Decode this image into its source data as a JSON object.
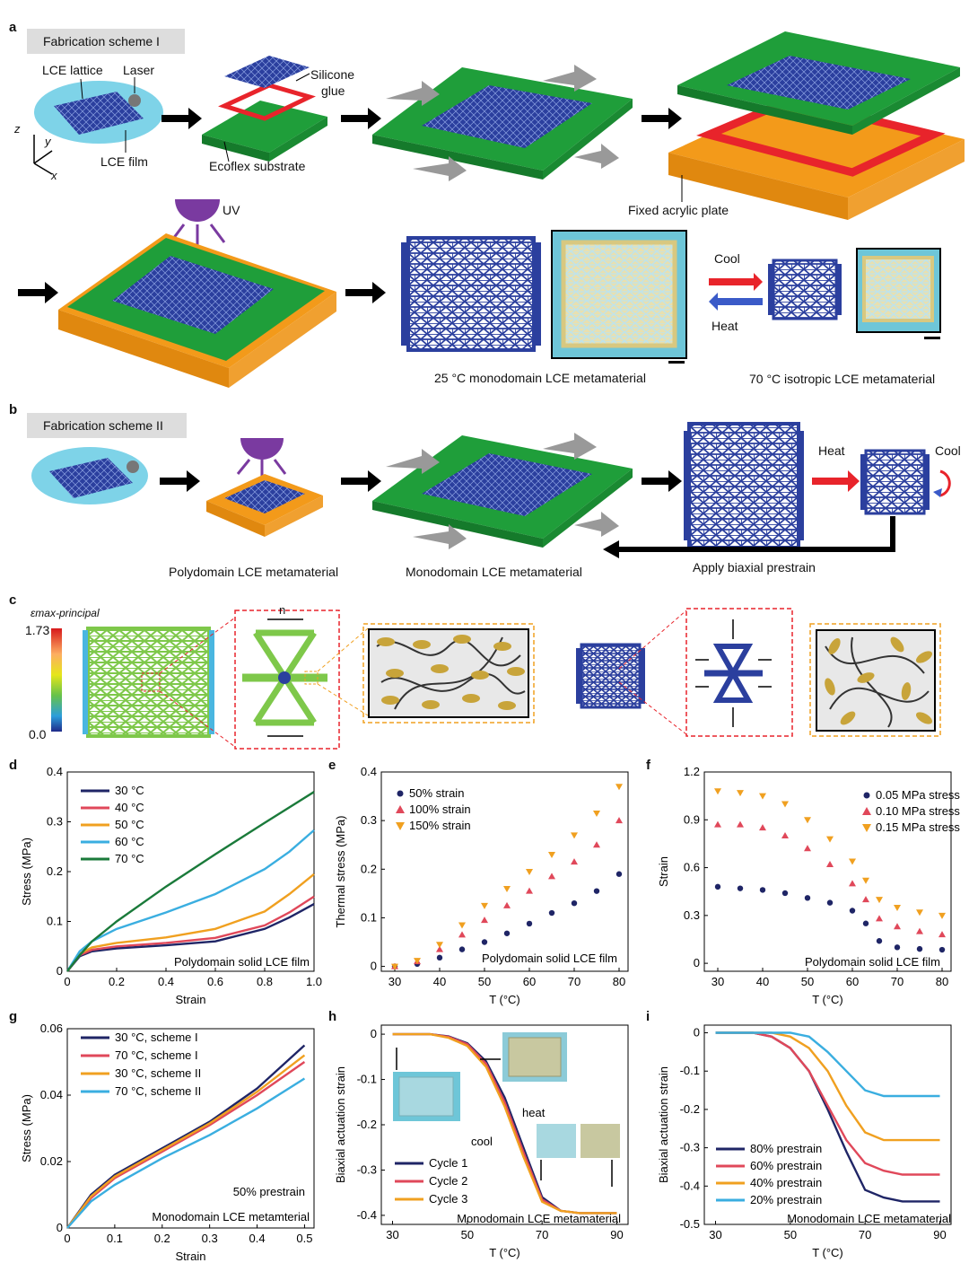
{
  "panel_labels": {
    "a": "a",
    "b": "b",
    "c": "c",
    "d": "d",
    "e": "e",
    "f": "f",
    "g": "g",
    "h": "h",
    "i": "i"
  },
  "panel_a": {
    "scheme": "Fabrication scheme I",
    "lce_lattice": "LCE lattice",
    "laser": "Laser",
    "lce_film": "LCE film",
    "silicone": "Silicone",
    "glue": "glue",
    "ecoflex": "Ecoflex substrate",
    "acrylic": "Fixed acrylic plate",
    "uv": "UV",
    "cool": "Cool",
    "heat": "Heat",
    "caption_mono": "25 °C monodomain LCE metamaterial",
    "caption_iso": "70 °C isotropic LCE metamaterial",
    "axis_z": "z",
    "axis_y": "y",
    "axis_x": "x"
  },
  "panel_b": {
    "scheme": "Fabrication scheme II",
    "poly": "Polydomain LCE metamaterial",
    "mono": "Monodomain LCE metamaterial",
    "heat": "Heat",
    "cool": "Cool",
    "prestrain": "Apply biaxial prestrain"
  },
  "panel_c": {
    "colorbar_label": "εmax-principal",
    "cb_max": "1.73",
    "cb_min": "0.0",
    "n_label": "n"
  },
  "colors": {
    "lattice": "#2b3f9e",
    "substrate": "#1f9e3a",
    "plate": "#f39a1a",
    "frame": "#e8242b",
    "film": "#7ed3e8",
    "uv": "#7a3aa0"
  },
  "chart_data": [
    {
      "id": "d",
      "type": "line",
      "xlabel": "Strain",
      "ylabel": "Stress (MPa)",
      "xlim": [
        0,
        1.0
      ],
      "ylim": [
        0,
        0.4
      ],
      "xticks": [
        "0",
        "0.2",
        "0.4",
        "0.6",
        "0.8",
        "1.0"
      ],
      "yticks": [
        "0",
        "0.1",
        "0.2",
        "0.3",
        "0.4"
      ],
      "annotation": "Polydomain solid LCE film",
      "series": [
        {
          "name": "30 °C",
          "color": "#1f2566",
          "x": [
            0,
            0.05,
            0.1,
            0.2,
            0.4,
            0.6,
            0.8,
            0.9,
            1.0
          ],
          "y": [
            0,
            0.03,
            0.04,
            0.046,
            0.052,
            0.06,
            0.085,
            0.108,
            0.135
          ]
        },
        {
          "name": "40 °C",
          "color": "#e0485a",
          "x": [
            0,
            0.05,
            0.1,
            0.2,
            0.4,
            0.6,
            0.8,
            0.9,
            1.0
          ],
          "y": [
            0,
            0.032,
            0.043,
            0.05,
            0.057,
            0.067,
            0.092,
            0.118,
            0.15
          ]
        },
        {
          "name": "50 °C",
          "color": "#f0a020",
          "x": [
            0,
            0.05,
            0.1,
            0.2,
            0.4,
            0.6,
            0.8,
            0.9,
            1.0
          ],
          "y": [
            0,
            0.035,
            0.048,
            0.057,
            0.068,
            0.085,
            0.12,
            0.155,
            0.195
          ]
        },
        {
          "name": "60 °C",
          "color": "#3aaee0",
          "x": [
            0,
            0.05,
            0.1,
            0.2,
            0.4,
            0.6,
            0.8,
            0.9,
            1.0
          ],
          "y": [
            0,
            0.04,
            0.06,
            0.085,
            0.118,
            0.155,
            0.205,
            0.24,
            0.283
          ]
        },
        {
          "name": "70 °C",
          "color": "#1a7a3a",
          "x": [
            0,
            0.05,
            0.1,
            0.2,
            0.4,
            0.6,
            0.8,
            1.0
          ],
          "y": [
            0,
            0.032,
            0.06,
            0.1,
            0.17,
            0.235,
            0.298,
            0.36
          ]
        }
      ]
    },
    {
      "id": "e",
      "type": "scatter",
      "xlabel": "T (°C)",
      "ylabel": "Thermal stress (MPa)",
      "xlim": [
        27,
        82
      ],
      "ylim": [
        -0.01,
        0.4
      ],
      "xticks": [
        "30",
        "40",
        "50",
        "60",
        "70",
        "80"
      ],
      "yticks": [
        "0",
        "0.1",
        "0.2",
        "0.3",
        "0.4"
      ],
      "annotation": "Polydomain solid LCE film",
      "series": [
        {
          "name": "50% strain",
          "color": "#1f2566",
          "marker": "circle",
          "x": [
            30,
            35,
            40,
            45,
            50,
            55,
            60,
            65,
            70,
            75,
            80
          ],
          "y": [
            0,
            0.005,
            0.018,
            0.035,
            0.05,
            0.068,
            0.088,
            0.11,
            0.13,
            0.155,
            0.19
          ]
        },
        {
          "name": "100% strain",
          "color": "#e0485a",
          "marker": "triangle-up",
          "x": [
            30,
            35,
            40,
            45,
            50,
            55,
            60,
            65,
            70,
            75,
            80
          ],
          "y": [
            0,
            0.01,
            0.035,
            0.065,
            0.095,
            0.125,
            0.155,
            0.185,
            0.215,
            0.25,
            0.3
          ]
        },
        {
          "name": "150% strain",
          "color": "#f0a020",
          "marker": "triangle-down",
          "x": [
            30,
            35,
            40,
            45,
            50,
            55,
            60,
            65,
            70,
            75,
            80
          ],
          "y": [
            0,
            0.012,
            0.045,
            0.085,
            0.125,
            0.16,
            0.195,
            0.23,
            0.27,
            0.315,
            0.37
          ]
        }
      ]
    },
    {
      "id": "f",
      "type": "scatter",
      "xlabel": "T (°C)",
      "ylabel": "Strain",
      "xlim": [
        27,
        82
      ],
      "ylim": [
        -0.05,
        1.2
      ],
      "xticks": [
        "30",
        "40",
        "50",
        "60",
        "70",
        "80"
      ],
      "yticks": [
        "0",
        "0.3",
        "0.6",
        "0.9",
        "1.2"
      ],
      "annotation": "Polydomain solid LCE film",
      "series": [
        {
          "name": "0.05 MPa stress",
          "color": "#1f2566",
          "marker": "circle",
          "x": [
            30,
            35,
            40,
            45,
            50,
            55,
            60,
            63,
            66,
            70,
            75,
            80
          ],
          "y": [
            0.48,
            0.47,
            0.46,
            0.44,
            0.41,
            0.38,
            0.33,
            0.25,
            0.14,
            0.1,
            0.09,
            0.085
          ]
        },
        {
          "name": "0.10 MPa stress",
          "color": "#e0485a",
          "marker": "triangle-up",
          "x": [
            30,
            35,
            40,
            45,
            50,
            55,
            60,
            63,
            66,
            70,
            75,
            80
          ],
          "y": [
            0.87,
            0.87,
            0.85,
            0.8,
            0.72,
            0.62,
            0.5,
            0.4,
            0.28,
            0.23,
            0.2,
            0.18
          ]
        },
        {
          "name": "0.15 MPa stress",
          "color": "#f0a020",
          "marker": "triangle-down",
          "x": [
            30,
            35,
            40,
            45,
            50,
            55,
            60,
            63,
            66,
            70,
            75,
            80
          ],
          "y": [
            1.08,
            1.07,
            1.05,
            1.0,
            0.9,
            0.78,
            0.64,
            0.52,
            0.4,
            0.35,
            0.32,
            0.3
          ]
        }
      ]
    },
    {
      "id": "g",
      "type": "line",
      "xlabel": "Strain",
      "ylabel": "Stress (MPa)",
      "xlim": [
        0,
        0.52
      ],
      "ylim": [
        0,
        0.06
      ],
      "xticks": [
        "0",
        "0.1",
        "0.2",
        "0.3",
        "0.4",
        "0.5"
      ],
      "yticks": [
        "0",
        "0.02",
        "0.04",
        "0.06"
      ],
      "annotation": "Monodomain LCE metamterial",
      "annotation2": "50% prestrain",
      "series": [
        {
          "name": "30 °C, scheme I",
          "color": "#1f2566",
          "x": [
            0,
            0.05,
            0.1,
            0.2,
            0.3,
            0.4,
            0.5
          ],
          "y": [
            0,
            0.01,
            0.016,
            0.024,
            0.032,
            0.042,
            0.055
          ]
        },
        {
          "name": "70 °C, scheme I",
          "color": "#e0485a",
          "x": [
            0,
            0.05,
            0.1,
            0.2,
            0.3,
            0.4,
            0.5
          ],
          "y": [
            0,
            0.009,
            0.015,
            0.023,
            0.031,
            0.04,
            0.05
          ]
        },
        {
          "name": "30 °C, scheme II",
          "color": "#f0a020",
          "x": [
            0,
            0.05,
            0.1,
            0.2,
            0.3,
            0.4,
            0.5
          ],
          "y": [
            0,
            0.0095,
            0.0155,
            0.0235,
            0.0315,
            0.041,
            0.052
          ]
        },
        {
          "name": "70 °C, scheme II",
          "color": "#3aaee0",
          "x": [
            0,
            0.05,
            0.1,
            0.2,
            0.3,
            0.4,
            0.5
          ],
          "y": [
            0,
            0.008,
            0.013,
            0.021,
            0.028,
            0.036,
            0.045
          ]
        }
      ]
    },
    {
      "id": "h",
      "type": "line",
      "xlabel": "T (°C)",
      "ylabel": "Biaxial actuation strain",
      "xlim": [
        27,
        93
      ],
      "ylim": [
        -0.42,
        0.02
      ],
      "xticks": [
        "30",
        "50",
        "70",
        "90"
      ],
      "yticks": [
        "0",
        "-0.1",
        "-0.2",
        "-0.3",
        "-0.4"
      ],
      "annotation": "Monodomain LCE metamaterial",
      "heat_label": "heat",
      "cool_label": "cool",
      "series": [
        {
          "name": "Cycle 1",
          "color": "#1f2566",
          "x": [
            30,
            40,
            45,
            50,
            55,
            60,
            65,
            70,
            75,
            80,
            90
          ],
          "y": [
            0,
            0,
            -0.005,
            -0.02,
            -0.06,
            -0.14,
            -0.25,
            -0.36,
            -0.39,
            -0.395,
            -0.395
          ]
        },
        {
          "name": "Cycle 2",
          "color": "#e0485a",
          "x": [
            30,
            40,
            45,
            50,
            55,
            60,
            65,
            70,
            75,
            80,
            90
          ],
          "y": [
            0,
            0,
            -0.006,
            -0.022,
            -0.065,
            -0.15,
            -0.26,
            -0.365,
            -0.39,
            -0.395,
            -0.395
          ]
        },
        {
          "name": "Cycle 3",
          "color": "#f0a020",
          "x": [
            30,
            40,
            45,
            50,
            55,
            60,
            65,
            70,
            75,
            80,
            90
          ],
          "y": [
            0,
            0,
            -0.008,
            -0.026,
            -0.072,
            -0.16,
            -0.27,
            -0.37,
            -0.39,
            -0.395,
            -0.395
          ]
        }
      ]
    },
    {
      "id": "i",
      "type": "line",
      "xlabel": "T (°C)",
      "ylabel": "Biaxial actuation strain",
      "xlim": [
        27,
        93
      ],
      "ylim": [
        -0.5,
        0.02
      ],
      "xticks": [
        "30",
        "50",
        "70",
        "90"
      ],
      "yticks": [
        "0",
        "-0.1",
        "-0.2",
        "-0.3",
        "-0.4",
        "-0.5"
      ],
      "annotation": "Monodomain LCE metamaterial",
      "series": [
        {
          "name": "80% prestrain",
          "color": "#1f2566",
          "x": [
            30,
            40,
            45,
            50,
            55,
            60,
            65,
            70,
            75,
            80,
            90
          ],
          "y": [
            0,
            0,
            -0.01,
            -0.04,
            -0.1,
            -0.2,
            -0.31,
            -0.41,
            -0.43,
            -0.44,
            -0.44
          ]
        },
        {
          "name": "60% prestrain",
          "color": "#e0485a",
          "x": [
            30,
            40,
            45,
            50,
            55,
            60,
            65,
            70,
            75,
            80,
            90
          ],
          "y": [
            0,
            0,
            -0.01,
            -0.04,
            -0.1,
            -0.19,
            -0.28,
            -0.34,
            -0.36,
            -0.37,
            -0.37
          ]
        },
        {
          "name": "40% prestrain",
          "color": "#f0a020",
          "x": [
            30,
            40,
            45,
            50,
            55,
            60,
            65,
            70,
            75,
            80,
            90
          ],
          "y": [
            0,
            0,
            0,
            -0.01,
            -0.04,
            -0.1,
            -0.19,
            -0.26,
            -0.28,
            -0.28,
            -0.28
          ]
        },
        {
          "name": "20% prestrain",
          "color": "#3aaee0",
          "x": [
            30,
            40,
            45,
            50,
            55,
            60,
            65,
            70,
            75,
            80,
            90
          ],
          "y": [
            0,
            0,
            0,
            0,
            -0.01,
            -0.05,
            -0.1,
            -0.15,
            -0.165,
            -0.165,
            -0.165
          ]
        }
      ]
    }
  ]
}
